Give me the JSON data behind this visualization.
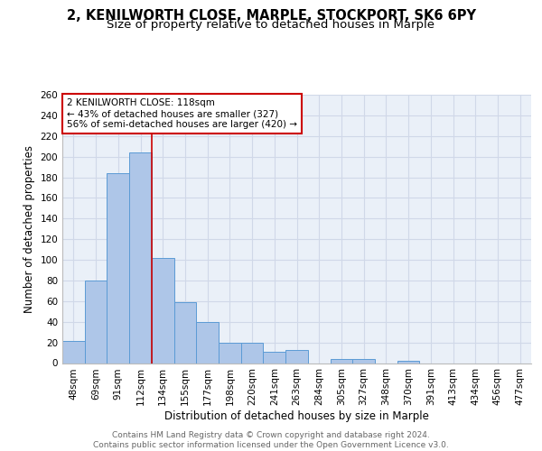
{
  "title1": "2, KENILWORTH CLOSE, MARPLE, STOCKPORT, SK6 6PY",
  "title2": "Size of property relative to detached houses in Marple",
  "xlabel": "Distribution of detached houses by size in Marple",
  "ylabel": "Number of detached properties",
  "categories": [
    "48sqm",
    "69sqm",
    "91sqm",
    "112sqm",
    "134sqm",
    "155sqm",
    "177sqm",
    "198sqm",
    "220sqm",
    "241sqm",
    "263sqm",
    "284sqm",
    "305sqm",
    "327sqm",
    "348sqm",
    "370sqm",
    "391sqm",
    "413sqm",
    "434sqm",
    "456sqm",
    "477sqm"
  ],
  "values": [
    21,
    80,
    184,
    204,
    102,
    59,
    40,
    20,
    20,
    11,
    13,
    0,
    4,
    4,
    0,
    2,
    0,
    0,
    0,
    0,
    0
  ],
  "bar_color": "#aec6e8",
  "bar_edge_color": "#5b9bd5",
  "grid_color": "#d0d8e8",
  "background_color": "#eaf0f8",
  "vline_x_index": 3.5,
  "vline_color": "#cc0000",
  "annotation_line1": "2 KENILWORTH CLOSE: 118sqm",
  "annotation_line2": "← 43% of detached houses are smaller (327)",
  "annotation_line3": "56% of semi-detached houses are larger (420) →",
  "annotation_box_color": "#cc0000",
  "ylim": [
    0,
    260
  ],
  "yticks": [
    0,
    20,
    40,
    60,
    80,
    100,
    120,
    140,
    160,
    180,
    200,
    220,
    240,
    260
  ],
  "footer_text": "Contains HM Land Registry data © Crown copyright and database right 2024.\nContains public sector information licensed under the Open Government Licence v3.0.",
  "title1_fontsize": 10.5,
  "title2_fontsize": 9.5,
  "xlabel_fontsize": 8.5,
  "ylabel_fontsize": 8.5,
  "tick_fontsize": 7.5,
  "footer_fontsize": 6.5
}
